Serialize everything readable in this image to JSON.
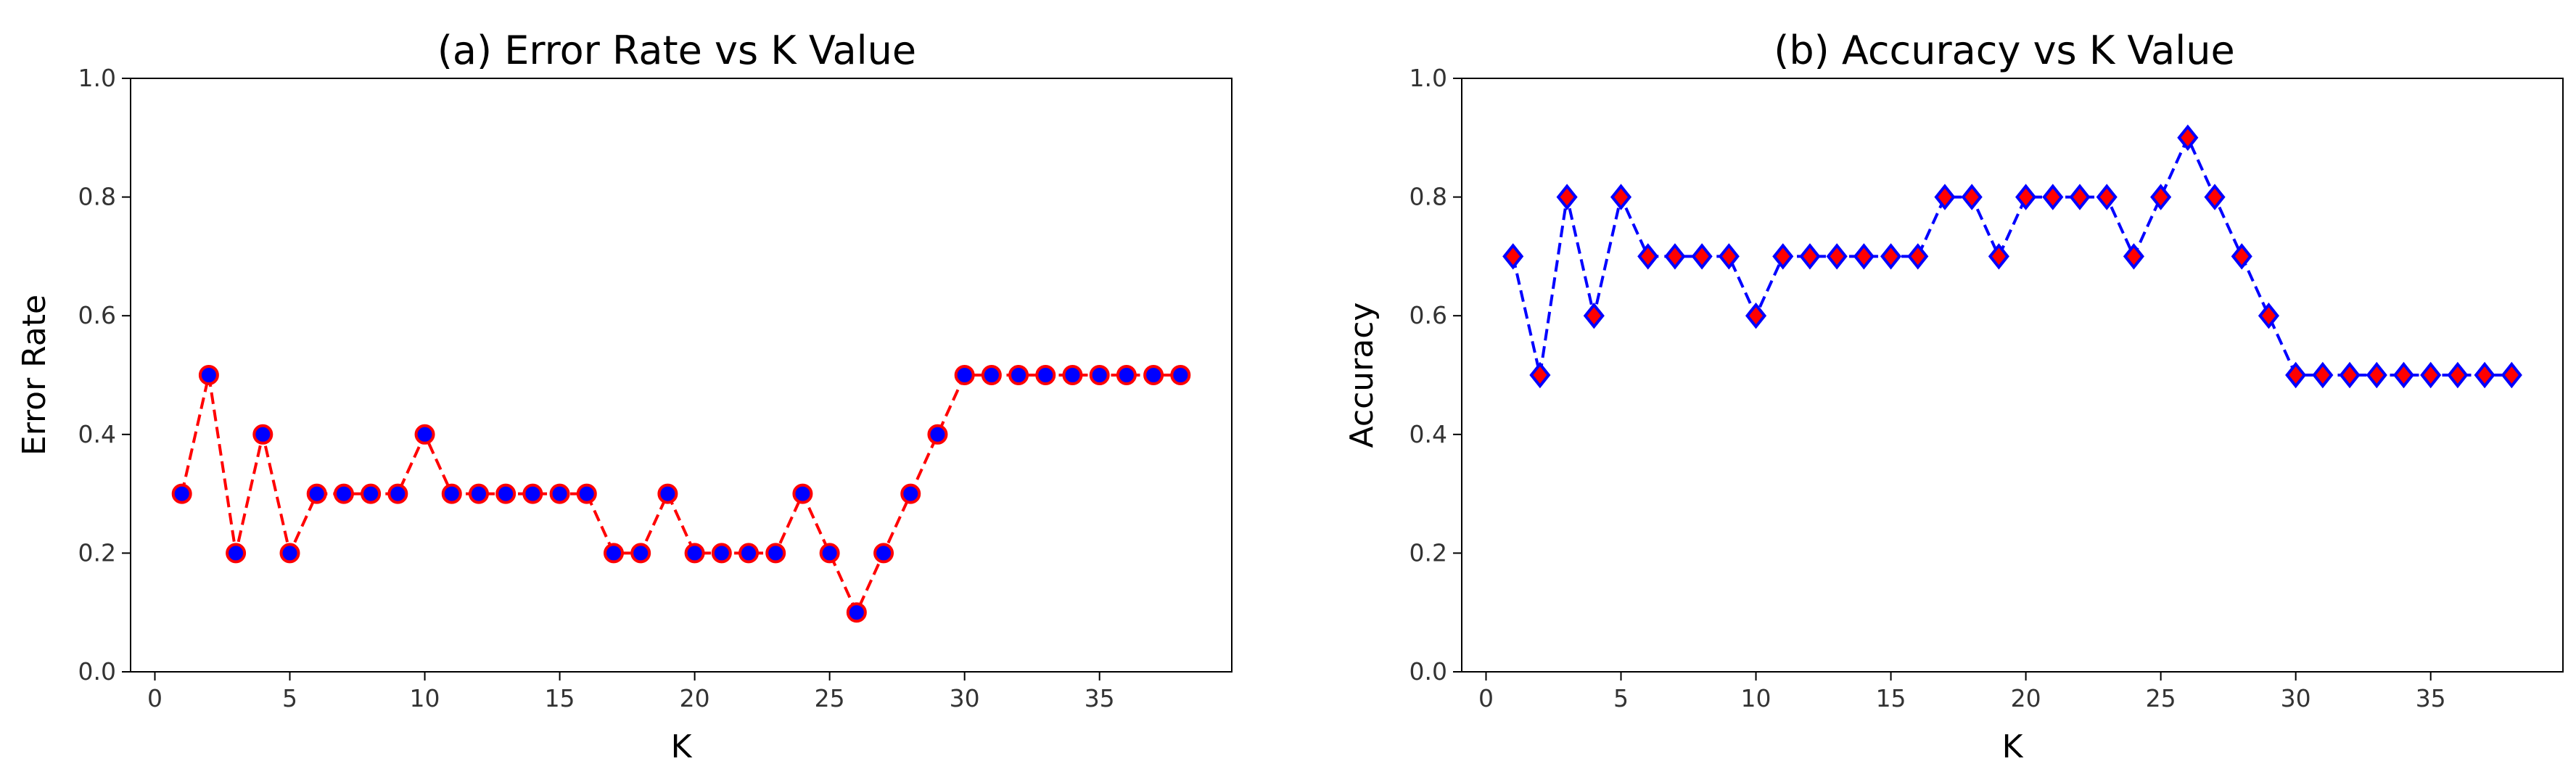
{
  "chart_data": [
    {
      "type": "line",
      "title": "(a) Error Rate vs K Value",
      "xlabel": "K",
      "ylabel": "Error Rate",
      "xlim": [
        -0.9,
        39.9
      ],
      "ylim": [
        0.0,
        1.0
      ],
      "xticks": [
        0,
        5,
        10,
        15,
        20,
        25,
        30,
        35
      ],
      "yticks": [
        0.0,
        0.2,
        0.4,
        0.6,
        0.8,
        1.0
      ],
      "xtick_labels": [
        "0",
        "5",
        "10",
        "15",
        "20",
        "25",
        "30",
        "35"
      ],
      "ytick_labels": [
        "0.0",
        "0.2",
        "0.4",
        "0.6",
        "0.8",
        "1.0"
      ],
      "grid": false,
      "line_color": "#ff0000",
      "marker_face_color": "#0000ff",
      "marker_edge_color": "#ff0000",
      "marker": "circle",
      "line_style": "dashed",
      "x": [
        1,
        2,
        3,
        4,
        5,
        6,
        7,
        8,
        9,
        10,
        11,
        12,
        13,
        14,
        15,
        16,
        17,
        18,
        19,
        20,
        21,
        22,
        23,
        24,
        25,
        26,
        27,
        28,
        29,
        30,
        31,
        32,
        33,
        34,
        35,
        36,
        37,
        38
      ],
      "y": [
        0.3,
        0.5,
        0.2,
        0.4,
        0.2,
        0.3,
        0.3,
        0.3,
        0.3,
        0.4,
        0.3,
        0.3,
        0.3,
        0.3,
        0.3,
        0.3,
        0.2,
        0.2,
        0.3,
        0.2,
        0.2,
        0.2,
        0.2,
        0.3,
        0.2,
        0.1,
        0.2,
        0.3,
        0.4,
        0.5,
        0.5,
        0.5,
        0.5,
        0.5,
        0.5,
        0.5,
        0.5,
        0.5
      ]
    },
    {
      "type": "line",
      "title": "(b) Accuracy vs K Value",
      "xlabel": "K",
      "ylabel": "Accuracy",
      "xlim": [
        -0.9,
        39.9
      ],
      "ylim": [
        0.0,
        1.0
      ],
      "xticks": [
        0,
        5,
        10,
        15,
        20,
        25,
        30,
        35
      ],
      "yticks": [
        0.0,
        0.2,
        0.4,
        0.6,
        0.8,
        1.0
      ],
      "xtick_labels": [
        "0",
        "5",
        "10",
        "15",
        "20",
        "25",
        "30",
        "35"
      ],
      "ytick_labels": [
        "0.0",
        "0.2",
        "0.4",
        "0.6",
        "0.8",
        "1.0"
      ],
      "grid": false,
      "line_color": "#0000ff",
      "marker_face_color": "#ff0000",
      "marker_edge_color": "#0000ff",
      "marker": "diamond",
      "line_style": "dashed",
      "x": [
        1,
        2,
        3,
        4,
        5,
        6,
        7,
        8,
        9,
        10,
        11,
        12,
        13,
        14,
        15,
        16,
        17,
        18,
        19,
        20,
        21,
        22,
        23,
        24,
        25,
        26,
        27,
        28,
        29,
        30,
        31,
        32,
        33,
        34,
        35,
        36,
        37,
        38
      ],
      "y": [
        0.7,
        0.5,
        0.8,
        0.6,
        0.8,
        0.7,
        0.7,
        0.7,
        0.7,
        0.6,
        0.7,
        0.7,
        0.7,
        0.7,
        0.7,
        0.7,
        0.8,
        0.8,
        0.7,
        0.8,
        0.8,
        0.8,
        0.8,
        0.7,
        0.8,
        0.9,
        0.8,
        0.7,
        0.6,
        0.5,
        0.5,
        0.5,
        0.5,
        0.5,
        0.5,
        0.5,
        0.5,
        0.5
      ]
    }
  ]
}
